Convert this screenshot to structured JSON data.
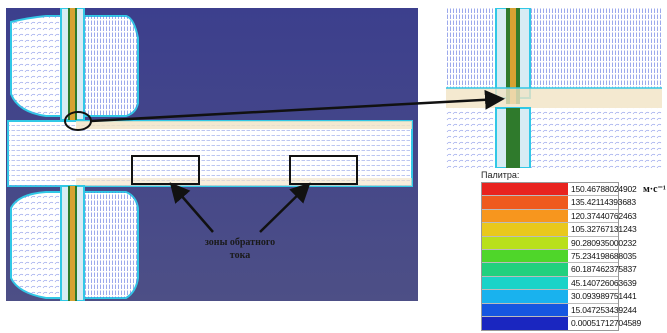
{
  "annotation": {
    "line1": "зоны обратного",
    "line2": "тока"
  },
  "legend": {
    "title": "Палитра:",
    "unit": "м·с⁻¹",
    "entries": [
      {
        "value": "150.46788024902",
        "color": "#e8231f"
      },
      {
        "value": "135.42114393683",
        "color": "#ef5a1e"
      },
      {
        "value": "120.37440762463",
        "color": "#f7961e"
      },
      {
        "value": "105.32767131243",
        "color": "#e9c81c"
      },
      {
        "value": "90.280935000232",
        "color": "#b9e01b"
      },
      {
        "value": "75.234198688035",
        "color": "#4fd62a"
      },
      {
        "value": "60.187462375837",
        "color": "#22d07e"
      },
      {
        "value": "45.140726063639",
        "color": "#1ad3c8"
      },
      {
        "value": "30.093989751441",
        "color": "#19b2ee"
      },
      {
        "value": "15.047253439244",
        "color": "#1656e0"
      },
      {
        "value": "0.00051712704589",
        "color": "#1a26c0"
      }
    ]
  }
}
